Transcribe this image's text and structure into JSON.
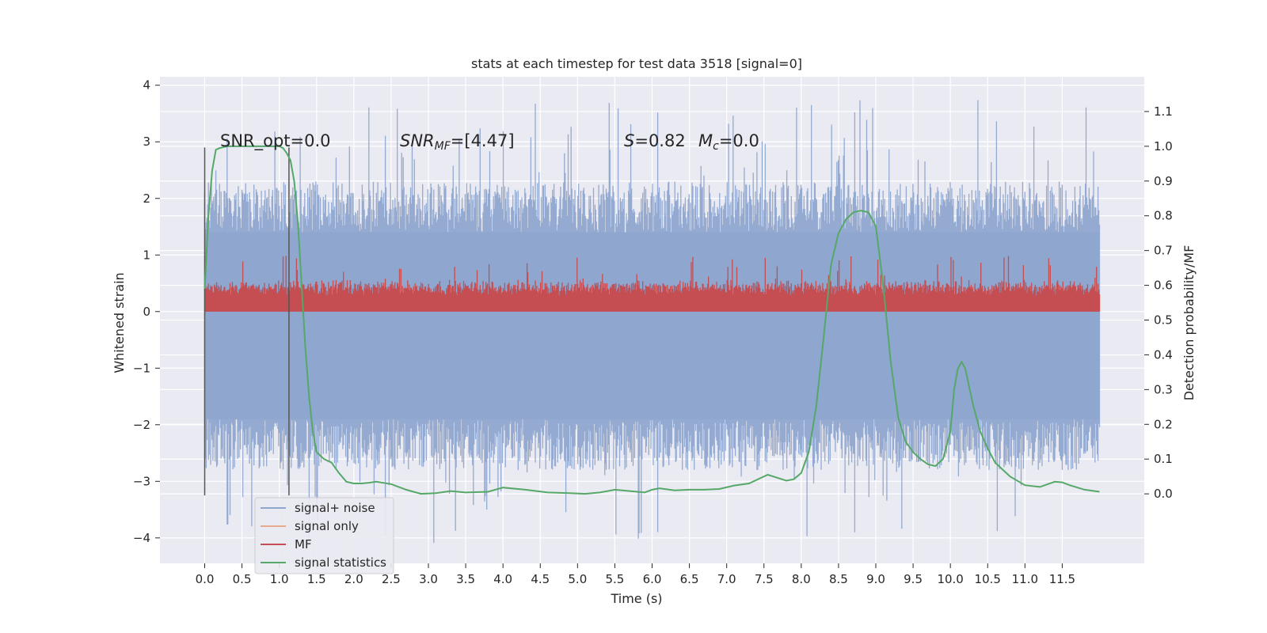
{
  "chart_data": {
    "type": "line",
    "title": "stats at each timestep for test data 3518 [signal=0]",
    "xlabel": "Time (s)",
    "ylabel_left": "Whitened strain",
    "ylabel_right": "Detection probability/MF",
    "xlim": [
      -0.6,
      12.6
    ],
    "ylim_left": [
      -4.45,
      4.15
    ],
    "ylim_right": [
      -0.2,
      1.2
    ],
    "x_ticks": [
      "0.0",
      "0.5",
      "1.0",
      "1.5",
      "2.0",
      "2.5",
      "3.0",
      "3.5",
      "4.0",
      "4.5",
      "5.0",
      "5.5",
      "6.0",
      "6.5",
      "7.0",
      "7.5",
      "8.0",
      "8.5",
      "9.0",
      "9.5",
      "10.0",
      "10.5",
      "11.0",
      "11.5"
    ],
    "y_left_ticks": [
      "4",
      "3",
      "2",
      "1",
      "0",
      "−1",
      "−2",
      "−3",
      "−4"
    ],
    "y_right_ticks": [
      "1.1",
      "1.0",
      "0.9",
      "0.8",
      "0.7",
      "0.6",
      "0.5",
      "0.4",
      "0.3",
      "0.2",
      "0.1",
      "0.0"
    ],
    "annotations": {
      "snr_opt": "SNR_opt=0.0",
      "snr_mf_sym": "SNR",
      "snr_mf_sub": "MF",
      "snr_mf_val": "=[4.47]",
      "s_sym": "S",
      "s_val": "=0.82",
      "mc_sym": "M",
      "mc_sub": "c",
      "mc_val": "=0.0"
    },
    "vertical_markers_s": [
      0.0,
      1.13
    ],
    "noise_band": {
      "typical_low": -1.9,
      "typical_high": 1.4,
      "spike_max": 3.75,
      "spike_min": -4.1,
      "x_start": 0.0,
      "x_end": 12.0
    },
    "mf_band": {
      "baseline": 0.0,
      "typical_high": 0.45,
      "spike_max": 1.0
    },
    "series": [
      {
        "name": "signal+ noise",
        "color": "#8fa6cf"
      },
      {
        "name": "signal only",
        "color": "#e8a98d"
      },
      {
        "name": "MF",
        "color": "#c44e52"
      },
      {
        "name": "signal statistics",
        "color": "#55a868",
        "x": [
          0.0,
          0.05,
          0.1,
          0.15,
          0.2,
          0.3,
          0.5,
          0.7,
          0.9,
          1.0,
          1.05,
          1.1,
          1.15,
          1.2,
          1.25,
          1.3,
          1.35,
          1.4,
          1.45,
          1.5,
          1.6,
          1.7,
          1.8,
          1.9,
          2.0,
          2.1,
          2.2,
          2.3,
          2.5,
          2.7,
          2.9,
          3.1,
          3.3,
          3.5,
          3.8,
          4.0,
          4.3,
          4.6,
          4.9,
          5.1,
          5.3,
          5.5,
          5.7,
          5.9,
          6.0,
          6.1,
          6.3,
          6.5,
          6.7,
          6.9,
          7.1,
          7.3,
          7.45,
          7.55,
          7.7,
          7.8,
          7.9,
          8.0,
          8.1,
          8.2,
          8.3,
          8.4,
          8.5,
          8.6,
          8.7,
          8.8,
          8.9,
          9.0,
          9.1,
          9.2,
          9.3,
          9.4,
          9.5,
          9.6,
          9.7,
          9.8,
          9.9,
          10.0,
          10.05,
          10.1,
          10.15,
          10.2,
          10.3,
          10.4,
          10.5,
          10.6,
          10.8,
          11.0,
          11.2,
          11.4,
          11.5,
          11.6,
          11.8,
          12.0
        ],
        "y": [
          0.59,
          0.8,
          0.93,
          0.99,
          0.995,
          1.0,
          1.0,
          1.0,
          1.0,
          1.0,
          0.995,
          0.98,
          0.96,
          0.9,
          0.78,
          0.6,
          0.42,
          0.28,
          0.18,
          0.12,
          0.1,
          0.09,
          0.06,
          0.035,
          0.03,
          0.03,
          0.032,
          0.035,
          0.028,
          0.012,
          0.0,
          0.002,
          0.008,
          0.004,
          0.006,
          0.018,
          0.012,
          0.004,
          0.002,
          0.0,
          0.004,
          0.012,
          0.008,
          0.004,
          0.012,
          0.016,
          0.01,
          0.012,
          0.012,
          0.014,
          0.024,
          0.03,
          0.045,
          0.055,
          0.045,
          0.038,
          0.042,
          0.06,
          0.12,
          0.25,
          0.45,
          0.66,
          0.75,
          0.79,
          0.81,
          0.815,
          0.81,
          0.77,
          0.6,
          0.38,
          0.22,
          0.15,
          0.12,
          0.1,
          0.085,
          0.08,
          0.1,
          0.18,
          0.3,
          0.36,
          0.38,
          0.36,
          0.26,
          0.18,
          0.13,
          0.09,
          0.05,
          0.025,
          0.02,
          0.035,
          0.033,
          0.025,
          0.012,
          0.006
        ]
      }
    ],
    "legend": {
      "placement": "lower-left",
      "items": [
        "signal+ noise",
        "signal only",
        "MF",
        "signal statistics"
      ]
    },
    "grid": true,
    "colors": {
      "axes_bg": "#eaeaf2",
      "grid": "#ffffff",
      "text": "#262626",
      "marker_line": "#555555"
    }
  }
}
